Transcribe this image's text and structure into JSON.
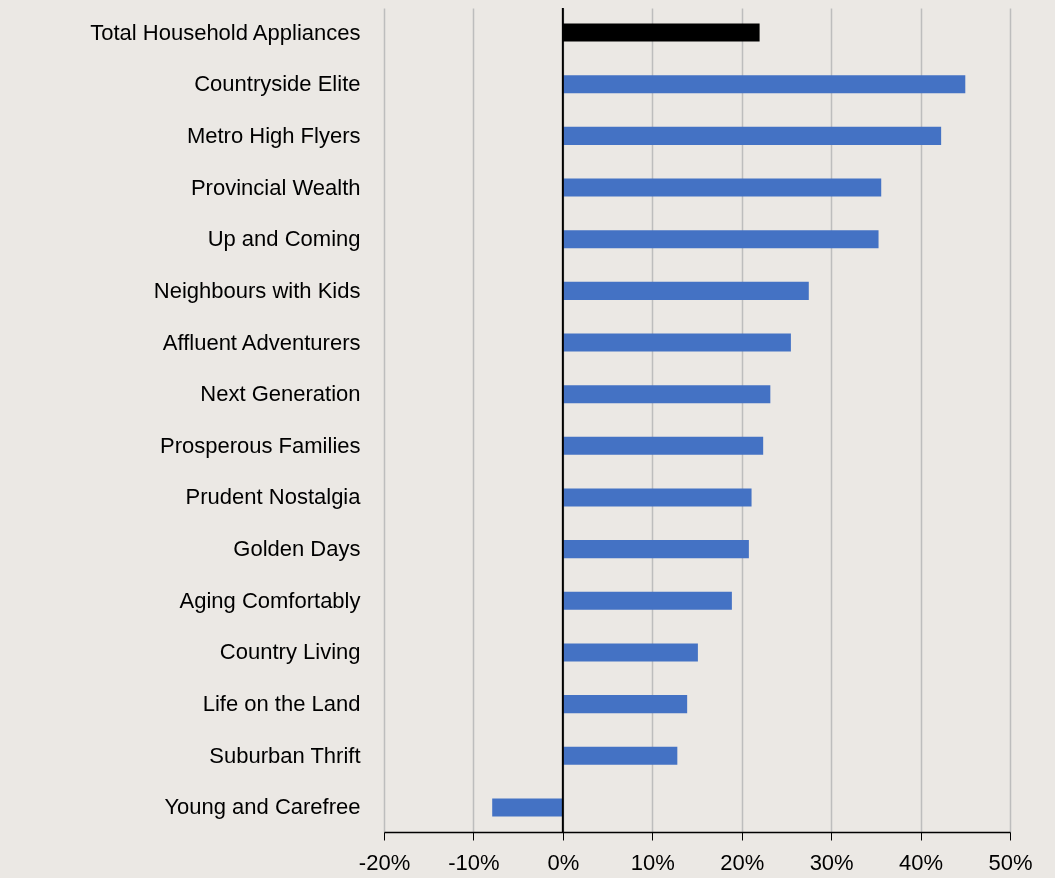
{
  "chart_data": {
    "type": "bar",
    "orientation": "horizontal",
    "categories": [
      "Total Household Appliances",
      "Countryside Elite",
      "Metro High Flyers",
      "Provincial Wealth",
      "Up and Coming",
      "Neighbours with Kids",
      "Affluent Adventurers",
      "Next Generation",
      "Prosperous Families",
      "Prudent Nostalgia",
      "Golden Days",
      "Aging Comfortably",
      "Country Living",
      "Life on the Land",
      "Suburban Thrift",
      "Young and Carefree"
    ],
    "values": [
      22,
      45,
      42.3,
      35.6,
      35.3,
      27.5,
      25.5,
      23.2,
      22.4,
      21.1,
      20.8,
      18.9,
      15.1,
      13.9,
      12.8,
      -7.9
    ],
    "colors": [
      "#000000",
      "#4472c4",
      "#4472c4",
      "#4472c4",
      "#4472c4",
      "#4472c4",
      "#4472c4",
      "#4472c4",
      "#4472c4",
      "#4472c4",
      "#4472c4",
      "#4472c4",
      "#4472c4",
      "#4472c4",
      "#4472c4",
      "#4472c4"
    ],
    "xlim": [
      -20,
      50
    ],
    "xticks": [
      {
        "value": -20,
        "label": "-20%"
      },
      {
        "value": -10,
        "label": "-10%"
      },
      {
        "value": 0,
        "label": "0%"
      },
      {
        "value": 10,
        "label": "10%"
      },
      {
        "value": 20,
        "label": "20%"
      },
      {
        "value": 30,
        "label": "30%"
      },
      {
        "value": 40,
        "label": "40%"
      },
      {
        "value": 50,
        "label": "50%"
      }
    ],
    "ref_lines": [
      {
        "axis": "x",
        "value": 0,
        "color": "#000000"
      }
    ],
    "grid": "x",
    "legend": false
  }
}
